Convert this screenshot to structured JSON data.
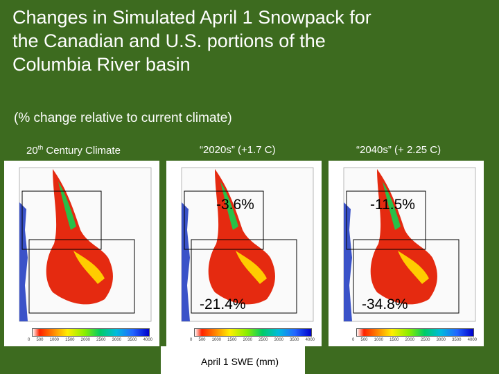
{
  "title": "Changes in Simulated April 1 Snowpack for the Canadian and U.S. portions of the Columbia River basin",
  "subtitle": "(% change relative to current climate)",
  "columns": [
    {
      "label_main": "20",
      "label_sup": "th",
      "label_rest": " Century Climate"
    },
    {
      "label": "“2020s” (+1.7 C)"
    },
    {
      "label": "“2040s” (+ 2.25 C)"
    }
  ],
  "panels": [
    {
      "upper_change": "",
      "lower_change": ""
    },
    {
      "upper_change": "-3.6%",
      "lower_change": "-21.4%"
    },
    {
      "upper_change": "-11.5%",
      "lower_change": "-34.8%"
    }
  ],
  "colorbar": {
    "ticks": [
      "0",
      "500",
      "1000",
      "1500",
      "2000",
      "2500",
      "3000",
      "3500",
      "4000"
    ],
    "label": "April 1 SWE (mm)"
  },
  "colors": {
    "background": "#3d6b1f",
    "ocean": "#3a52c8",
    "snow_red": "#e52a10",
    "snow_green": "#28c048"
  }
}
